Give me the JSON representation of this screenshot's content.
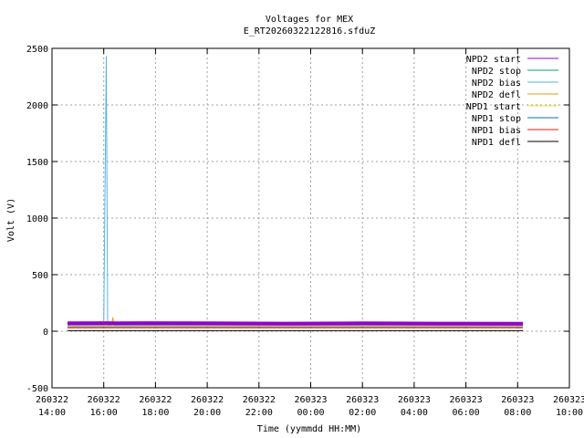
{
  "chart_data": {
    "type": "line",
    "title": "Voltages for MEX",
    "subtitle": "E_RT20260322122816.sfduZ",
    "xlabel": "Time (yymmdd HH:MM)",
    "ylabel": "Volt (V)",
    "ylim": [
      -500,
      2500
    ],
    "yticks": [
      -500,
      0,
      500,
      1000,
      1500,
      2000,
      2500
    ],
    "xlim_hours": [
      14,
      34
    ],
    "xticks": [
      {
        "date": "260322",
        "time": "14:00"
      },
      {
        "date": "260322",
        "time": "16:00"
      },
      {
        "date": "260322",
        "time": "18:00"
      },
      {
        "date": "260322",
        "time": "20:00"
      },
      {
        "date": "260322",
        "time": "22:00"
      },
      {
        "date": "260323",
        "time": "00:00"
      },
      {
        "date": "260323",
        "time": "02:00"
      },
      {
        "date": "260323",
        "time": "04:00"
      },
      {
        "date": "260323",
        "time": "06:00"
      },
      {
        "date": "260323",
        "time": "08:00"
      },
      {
        "date": "260323",
        "time": "10:00"
      }
    ],
    "grid": true,
    "legend_position": "top-right",
    "series": [
      {
        "name": "NPD2 start",
        "color": "#9400d3",
        "x": [
          14.6,
          16.0,
          16.5,
          17.5,
          20.0,
          23.0,
          26.0,
          29.0,
          32.0,
          32.2
        ],
        "y": [
          70,
          72,
          70,
          72,
          70,
          68,
          70,
          68,
          66,
          66
        ]
      },
      {
        "name": "NPD2 stop",
        "color": "#009e73",
        "x": [
          14.6,
          16.5,
          17.5,
          20.0,
          23.0,
          26.0,
          29.0,
          32.2
        ],
        "y": [
          62,
          60,
          60,
          60,
          60,
          58,
          58,
          58
        ]
      },
      {
        "name": "NPD2 bias",
        "color": "#56b4e9",
        "x": [
          14.6,
          16.0,
          16.1,
          16.15,
          16.3,
          17.5,
          26.0,
          32.2
        ],
        "y": [
          55,
          55,
          2430,
          55,
          55,
          55,
          55,
          55
        ]
      },
      {
        "name": "NPD2 defl",
        "color": "#e69f00",
        "x": [
          14.6,
          16.3,
          16.35,
          16.4,
          17.5,
          26.0,
          32.2
        ],
        "y": [
          50,
          50,
          120,
          50,
          50,
          50,
          50
        ]
      },
      {
        "name": "NPD1 start",
        "color": "#f0e442",
        "x": [
          14.6,
          17.5,
          26.0,
          32.2
        ],
        "y": [
          45,
          45,
          45,
          45
        ]
      },
      {
        "name": "NPD1 stop",
        "color": "#0072b2",
        "x": [
          14.6,
          17.5,
          26.0,
          32.2
        ],
        "y": [
          40,
          40,
          40,
          40
        ]
      },
      {
        "name": "NPD1 bias",
        "color": "#e51e10",
        "x": [
          14.6,
          17.5,
          26.0,
          32.2
        ],
        "y": [
          30,
          30,
          30,
          30
        ]
      },
      {
        "name": "NPD1 defl",
        "color": "#000000",
        "x": [
          14.6,
          17.5,
          26.0,
          32.2
        ],
        "y": [
          5,
          5,
          5,
          5
        ]
      }
    ]
  }
}
